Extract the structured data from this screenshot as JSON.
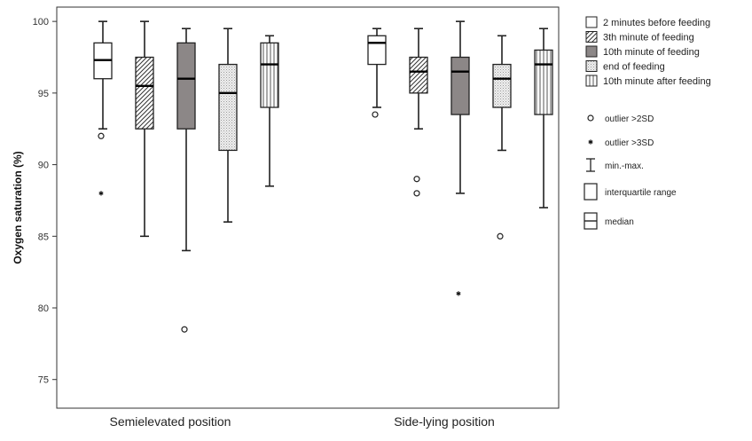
{
  "chart_data": {
    "type": "boxplot",
    "ylabel": "Oxygen saturation (%)",
    "ylim": [
      73,
      101
    ],
    "yticks": [
      75,
      80,
      85,
      90,
      95,
      100
    ],
    "categories": [
      "Semielevated position",
      "Side-lying position"
    ],
    "series": [
      {
        "name": "2 minutes before feeding",
        "pattern": "white",
        "boxes": [
          {
            "min": 92.5,
            "q1": 96,
            "median": 97.3,
            "q3": 98.5,
            "max": 100,
            "outliers_2sd": [
              92
            ],
            "outliers_3sd": [
              88
            ]
          },
          {
            "min": 94,
            "q1": 97,
            "median": 98.5,
            "q3": 99,
            "max": 99.5,
            "outliers_2sd": [
              93.5
            ],
            "outliers_3sd": []
          }
        ]
      },
      {
        "name": "3th minute of feeding",
        "pattern": "diagonal",
        "boxes": [
          {
            "min": 85,
            "q1": 92.5,
            "median": 95.5,
            "q3": 97.5,
            "max": 100,
            "outliers_2sd": [],
            "outliers_3sd": []
          },
          {
            "min": 92.5,
            "q1": 95,
            "median": 96.5,
            "q3": 97.5,
            "max": 99.5,
            "outliers_2sd": [
              89,
              88
            ],
            "outliers_3sd": []
          }
        ]
      },
      {
        "name": "10th minute of feeding",
        "pattern": "gray",
        "boxes": [
          {
            "min": 84,
            "q1": 92.5,
            "median": 96,
            "q3": 98.5,
            "max": 99.5,
            "outliers_2sd": [
              78.5
            ],
            "outliers_3sd": []
          },
          {
            "min": 88,
            "q1": 93.5,
            "median": 96.5,
            "q3": 97.5,
            "max": 100,
            "outliers_2sd": [],
            "outliers_3sd": [
              81
            ]
          }
        ]
      },
      {
        "name": "end of feeding",
        "pattern": "dotted",
        "boxes": [
          {
            "min": 86,
            "q1": 91,
            "median": 95,
            "q3": 97,
            "max": 99.5,
            "outliers_2sd": [],
            "outliers_3sd": []
          },
          {
            "min": 91,
            "q1": 94,
            "median": 96,
            "q3": 97,
            "max": 99,
            "outliers_2sd": [
              85
            ],
            "outliers_3sd": []
          }
        ]
      },
      {
        "name": "10th minute after feeding",
        "pattern": "vertical",
        "boxes": [
          {
            "min": 88.5,
            "q1": 94,
            "median": 97,
            "q3": 98.5,
            "max": 99,
            "outliers_2sd": [],
            "outliers_3sd": []
          },
          {
            "min": 87,
            "q1": 93.5,
            "median": 97,
            "q3": 98,
            "max": 99.5,
            "outliers_2sd": [],
            "outliers_3sd": []
          }
        ]
      }
    ],
    "legend_placement": "right",
    "key": [
      {
        "symbol": "circle",
        "label": "outlier >2SD"
      },
      {
        "symbol": "star",
        "label": "outlier >3SD"
      },
      {
        "symbol": "whisker",
        "label": "min.-max."
      },
      {
        "symbol": "box",
        "label": "interquartile range"
      },
      {
        "symbol": "median",
        "label": "median"
      }
    ],
    "colors": {
      "axis": "#333333",
      "box_stroke": "#222222",
      "gray_fill": "#8c8787",
      "dotted_fill": "#e6e6e6"
    }
  }
}
